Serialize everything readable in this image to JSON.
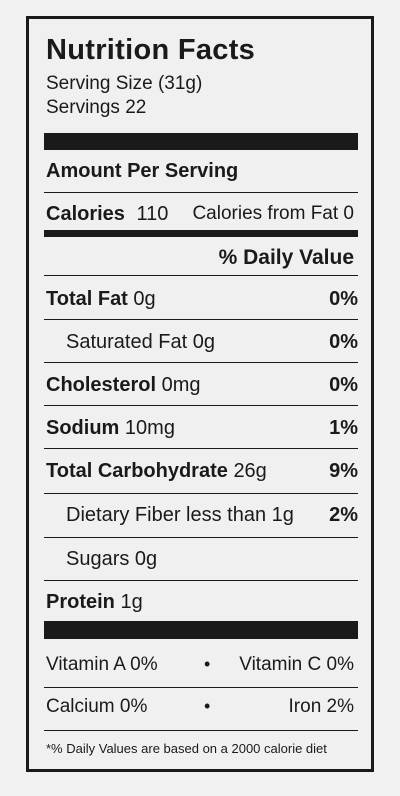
{
  "title": "Nutrition Facts",
  "serving_size": "Serving Size (31g)",
  "servings": "Servings 22",
  "amount_per_serving": "Amount Per Serving",
  "calories": {
    "label": "Calories",
    "value": "110",
    "from_fat": "Calories from Fat 0"
  },
  "dv_header": "% Daily Value",
  "nutrients": [
    {
      "label": "Total Fat",
      "amount": "0g",
      "dv": "0%"
    },
    {
      "label": "Saturated Fat 0g",
      "amount": "",
      "dv": "0%"
    },
    {
      "label": "Cholesterol",
      "amount": "0mg",
      "dv": "0%"
    },
    {
      "label": "Sodium",
      "amount": "10mg",
      "dv": "1%"
    },
    {
      "label": "Total Carbohydrate",
      "amount": "26g",
      "dv": "9%"
    },
    {
      "label": "Dietary Fiber less than 1g",
      "amount": "",
      "dv": "2%"
    },
    {
      "label": "Sugars 0g",
      "amount": "",
      "dv": ""
    },
    {
      "label": "Protein",
      "amount": "1g",
      "dv": ""
    }
  ],
  "vitamins": [
    {
      "left": "Vitamin A 0%",
      "sep": "•",
      "right": "Vitamin C 0%"
    },
    {
      "left": "Calcium 0%",
      "sep": "•",
      "right": "Iron 2%"
    }
  ],
  "footnote": "*% Daily Values are based on a 2000 calorie diet"
}
